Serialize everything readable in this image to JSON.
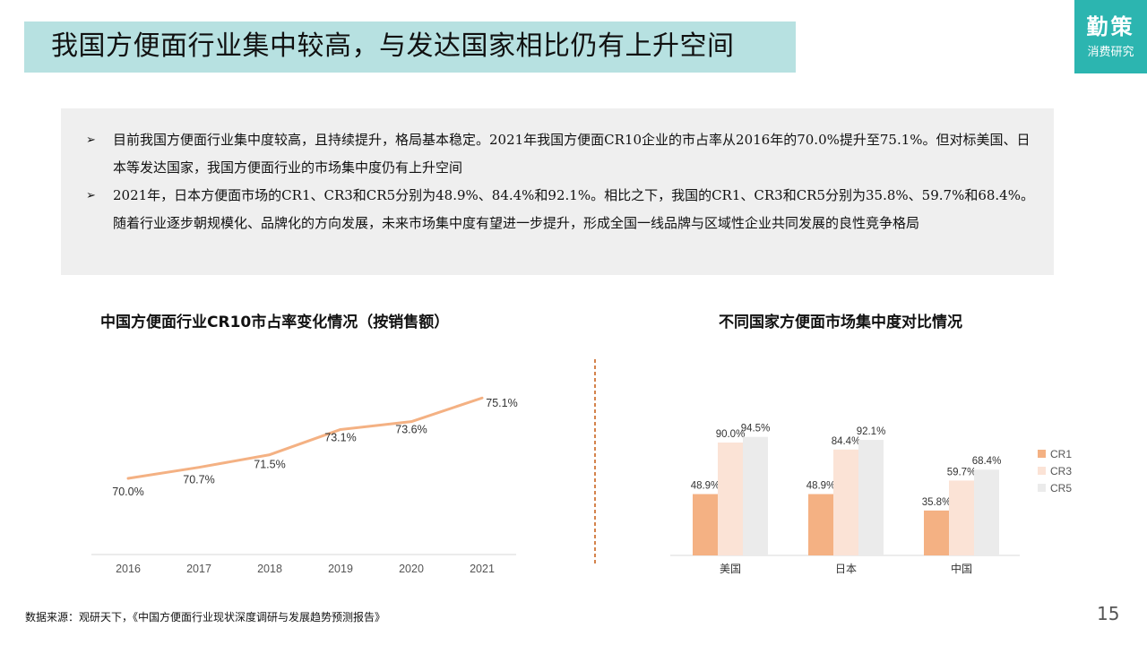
{
  "header": {
    "title": "我国方便面行业集中较高，与发达国家相比仍有上升空间"
  },
  "logo": {
    "main": "勤策",
    "sub": "消费研究"
  },
  "summary": {
    "bullet_marker": "➢",
    "bullets": [
      "目前我国方便面行业集中度较高，且持续提升，格局基本稳定。2021年我国方便面CR10企业的市占率从2016年的70.0%提升至75.1%。但对标美国、日本等发达国家，我国方便面行业的市场集中度仍有上升空间",
      "2021年，日本方便面市场的CR1、CR3和CR5分别为48.9%、84.4%和92.1%。相比之下，我国的CR1、CR3和CR5分别为35.8%、59.7%和68.4%。随着行业逐步朝规模化、品牌化的方向发展，未来市场集中度有望进一步提升，形成全国一线品牌与区域性企业共同发展的良性竞争格局"
    ]
  },
  "chart_data": [
    {
      "type": "line",
      "title": "中国方便面行业CR10市占率变化情况（按销售额）",
      "x": [
        "2016",
        "2017",
        "2018",
        "2019",
        "2020",
        "2021"
      ],
      "values": [
        70.0,
        70.7,
        71.5,
        73.1,
        73.6,
        75.1
      ],
      "value_labels": [
        "70.0%",
        "70.7%",
        "71.5%",
        "73.1%",
        "73.6%",
        "75.1%"
      ],
      "color": "#f4b183",
      "grid": false
    },
    {
      "type": "bar",
      "title": "不同国家方便面市场集中度对比情况",
      "categories": [
        "美国",
        "日本",
        "中国"
      ],
      "series": [
        {
          "name": "CR1",
          "values": [
            48.9,
            48.9,
            35.8
          ],
          "labels": [
            "48.9%",
            "48.9%",
            "35.8%"
          ],
          "color": "#f4b183"
        },
        {
          "name": "CR3",
          "values": [
            90.0,
            84.4,
            59.7
          ],
          "labels": [
            "90.0%",
            "84.4%",
            "59.7%"
          ],
          "color": "#fbe3d6"
        },
        {
          "name": "CR5",
          "values": [
            94.5,
            92.1,
            68.4
          ],
          "labels": [
            "94.5%",
            "92.1%",
            "68.4%"
          ],
          "color": "#ebebeb"
        }
      ],
      "legend": "right",
      "ylim": [
        0,
        100
      ],
      "grid": false
    }
  ],
  "footer": {
    "source": "数据来源：观研天下，《中国方便面行业现状深度调研与发展趋势预测报告》",
    "page": "15"
  },
  "colors": {
    "title_bg": "#b7e1e1",
    "logo_bg": "#2cb5b0",
    "summary_bg": "#efefef",
    "divider": "#c55a11"
  }
}
